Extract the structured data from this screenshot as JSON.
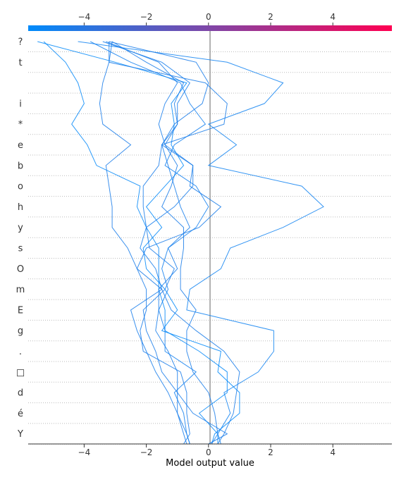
{
  "chart_data": {
    "type": "line",
    "xlabel": "Model output value",
    "xlim": [
      -5.8,
      5.9
    ],
    "x_ticks": [
      -4,
      -2,
      0,
      2,
      4
    ],
    "x_tick_labels": [
      "−4",
      "−2",
      "0",
      "2",
      "4"
    ],
    "base_value": 0.05,
    "features": [
      "?",
      "t",
      "",
      "i",
      "*",
      "e",
      "b",
      "o",
      "h",
      "y",
      "s",
      "O",
      "m",
      "E",
      "g",
      ".",
      "□",
      "d",
      "é",
      "Y"
    ],
    "colorbar": {
      "range": [
        -5.8,
        5.9
      ],
      "ticks": [
        -4,
        -2,
        0,
        2,
        4
      ],
      "tick_labels": [
        "−4",
        "−2",
        "0",
        "2",
        "4"
      ],
      "colors": [
        "#008bfb",
        "#ff0052"
      ]
    },
    "series": [
      {
        "values": [
          0.3,
          0.3,
          -0.3,
          0.6,
          0.6,
          -0.3,
          -1.4,
          -1.4,
          -1.6,
          -1.6,
          -1.6,
          -2.0,
          -2.3,
          -2.2,
          -3.6,
          -3.9,
          -4.4,
          -4.0,
          -4.2,
          -4.6,
          -5.3
        ]
      },
      {
        "values": [
          0.1,
          0.2,
          1.0,
          1.0,
          0.3,
          0.4,
          -1.5,
          -1.0,
          -1.4,
          -2.0,
          -2.1,
          -1.5,
          -2.0,
          -1.4,
          -0.8,
          -1.2,
          -1.1,
          -1.2,
          -0.7,
          -3.0,
          -5.5
        ]
      },
      {
        "values": [
          0.4,
          0.3,
          0.7,
          0.5,
          1.6,
          2.1,
          2.1,
          -0.7,
          -0.6,
          0.4,
          0.7,
          2.4,
          3.7,
          3.0,
          0.0,
          0.9,
          0.0,
          1.8,
          2.4,
          0.6,
          -4.2
        ]
      },
      {
        "values": [
          0.0,
          0.6,
          -0.5,
          -1.0,
          -1.5,
          -1.7,
          -2.0,
          -2.1,
          -1.4,
          -1.1,
          -1.9,
          -2.0,
          -2.1,
          -2.1,
          -1.6,
          -1.5,
          -1.1,
          -0.2,
          0.0,
          -0.4,
          -3.2
        ]
      },
      {
        "values": [
          -0.8,
          -0.6,
          -0.7,
          -0.7,
          -0.9,
          -2.1,
          -2.2,
          -2.0,
          -2.0,
          -2.3,
          -2.6,
          -3.1,
          -3.1,
          -3.2,
          -3.3,
          -2.5,
          -3.4,
          -3.5,
          -3.4,
          -3.2,
          -3.2
        ]
      },
      {
        "values": [
          -0.6,
          -0.7,
          -1.0,
          -1.0,
          -1.0,
          -1.3,
          -1.7,
          -1.6,
          -1.6,
          -1.0,
          -1.3,
          -0.6,
          -0.9,
          -1.1,
          -1.3,
          -1.5,
          -1.0,
          -1.0,
          -0.6,
          -1.5,
          -3.4
        ]
      },
      {
        "values": [
          0.1,
          0.3,
          0.2,
          0.0,
          -0.5,
          -0.7,
          -0.7,
          -0.4,
          -0.9,
          -0.9,
          -0.8,
          -0.8,
          -1.5,
          -1.2,
          -1.0,
          -1.4,
          -1.0,
          -1.1,
          -0.8,
          -2.0,
          -3.1
        ]
      },
      {
        "values": [
          -0.6,
          -0.7,
          -0.8,
          -1.1,
          -0.4,
          -1.4,
          -1.4,
          -1.6,
          -1.3,
          -1.5,
          -1.3,
          -0.4,
          0.0,
          -0.4,
          -1.4,
          -1.1,
          -0.1,
          -0.6,
          -0.9,
          -2.5,
          -3.8
        ]
      },
      {
        "values": [
          -0.7,
          -0.8,
          -1.0,
          -1.3,
          -1.7,
          -2.0,
          -2.3,
          -2.5,
          -1.5,
          -1.7,
          -2.2,
          -2.0,
          -1.1,
          -0.5,
          -0.5,
          -1.4,
          -1.6,
          -1.4,
          -1.0,
          -1.6,
          -3.3
        ]
      },
      {
        "values": [
          0.3,
          0.5,
          0.8,
          0.9,
          1.0,
          0.5,
          -0.4,
          -1.2,
          -1.5,
          -2.3,
          -2.0,
          -0.3,
          0.4,
          -0.6,
          -0.5,
          -1.5,
          0.5,
          0.6,
          -0.1,
          -3.2,
          -3.1
        ]
      }
    ]
  }
}
